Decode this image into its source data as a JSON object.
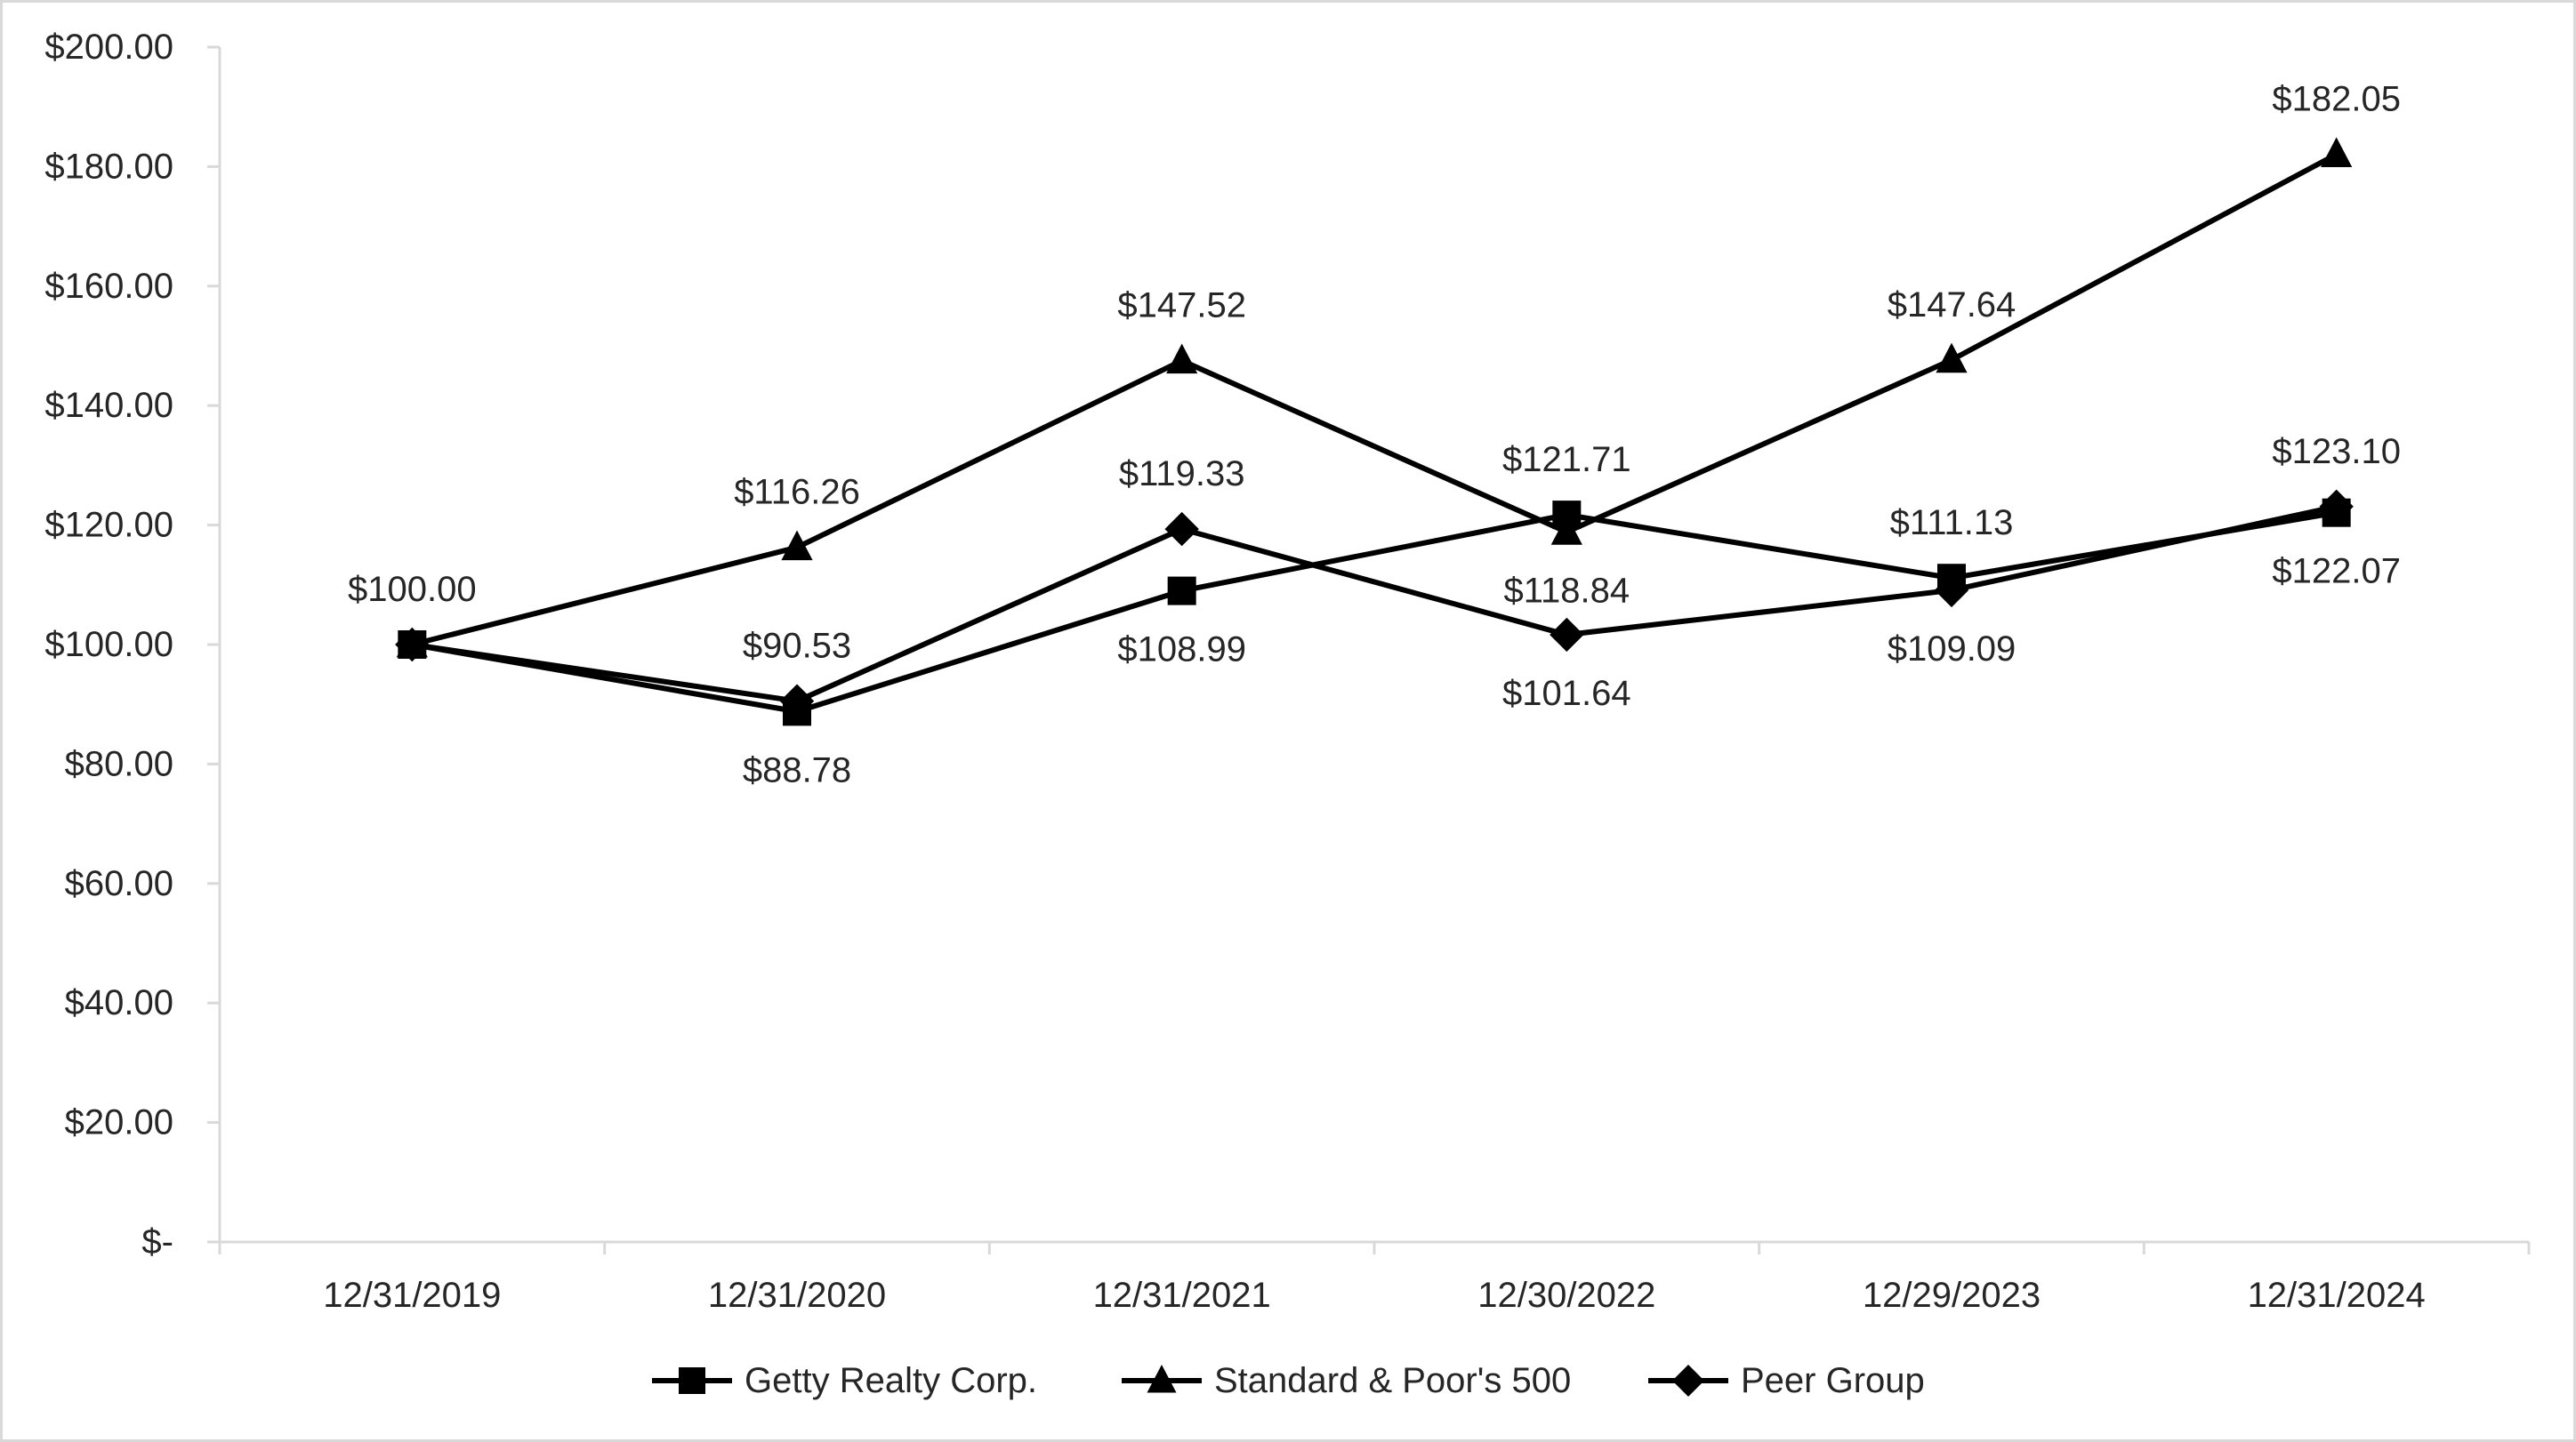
{
  "chart_data": {
    "type": "line",
    "title": "",
    "xlabel": "",
    "ylabel": "",
    "categories": [
      "12/31/2019",
      "12/31/2020",
      "12/31/2021",
      "12/30/2022",
      "12/29/2023",
      "12/31/2024"
    ],
    "ylim": [
      0,
      200
    ],
    "ytick_values": [
      0,
      20,
      40,
      60,
      80,
      100,
      120,
      140,
      160,
      180,
      200
    ],
    "ytick_labels": [
      "$-",
      "$20.00",
      "$40.00",
      "$60.00",
      "$80.00",
      "$100.00",
      "$120.00",
      "$140.00",
      "$160.00",
      "$180.00",
      "$200.00"
    ],
    "grid": false,
    "legend_position": "bottom",
    "series": [
      {
        "name": "Getty Realty Corp.",
        "marker": "square",
        "color": "#000000",
        "values": [
          100.0,
          88.78,
          108.99,
          121.71,
          111.13,
          122.07
        ],
        "labels": [
          "$100.00",
          "$88.78",
          "$108.99",
          "$121.71",
          "$111.13",
          "$122.07"
        ],
        "label_positions": [
          "above",
          "below",
          "below",
          "above",
          "above",
          "below"
        ]
      },
      {
        "name": "Standard & Poor's 500",
        "marker": "triangle",
        "color": "#000000",
        "values": [
          100.0,
          116.26,
          147.52,
          118.84,
          147.64,
          182.05
        ],
        "labels": [
          "",
          "$116.26",
          "$147.52",
          "$118.84",
          "$147.64",
          "$182.05"
        ],
        "label_positions": [
          "none",
          "above",
          "above",
          "below",
          "above",
          "above"
        ]
      },
      {
        "name": "Peer Group",
        "marker": "diamond",
        "color": "#000000",
        "values": [
          100.0,
          90.53,
          119.33,
          101.64,
          109.09,
          123.1
        ],
        "labels": [
          "",
          "$90.53",
          "$119.33",
          "$101.64",
          "$109.09",
          "$123.10"
        ],
        "label_positions": [
          "none",
          "above",
          "above",
          "below",
          "below",
          "above"
        ]
      }
    ]
  }
}
